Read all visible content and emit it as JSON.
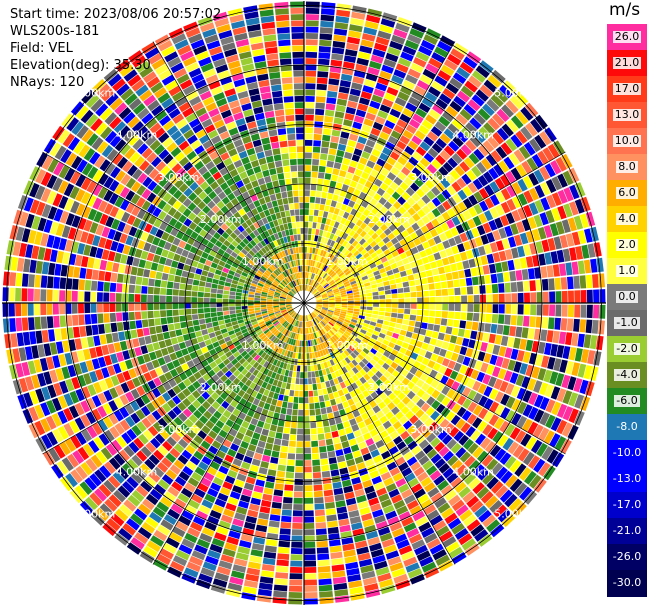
{
  "header": {
    "start_time": "Start time: 2023/08/06 20:57:02",
    "site": "WLS200s-181",
    "field": "Field: VEL",
    "elevation": "Elevation(deg): 35.30",
    "nrays": "NRays: 120"
  },
  "colorbar": {
    "unit": "m/s",
    "levels": [
      {
        "label": "26.0",
        "color": "#ff2da0"
      },
      {
        "label": "21.0",
        "color": "#ff0a0a"
      },
      {
        "label": "17.0",
        "color": "#ff3b1a"
      },
      {
        "label": "13.0",
        "color": "#ff5733"
      },
      {
        "label": "10.0",
        "color": "#ff7350"
      },
      {
        "label": "8.0",
        "color": "#ff9060"
      },
      {
        "label": "6.0",
        "color": "#ffae00"
      },
      {
        "label": "4.0",
        "color": "#ffd200"
      },
      {
        "label": "2.0",
        "color": "#ffff00"
      },
      {
        "label": "1.0",
        "color": "#ffff40"
      },
      {
        "label": "0.0",
        "color": "#7a7a7a"
      },
      {
        "label": "-1.0",
        "color": "#6b6b6b"
      },
      {
        "label": "-2.0",
        "color": "#9acd32"
      },
      {
        "label": "-4.0",
        "color": "#6b8e23"
      },
      {
        "label": "-6.0",
        "color": "#228b22"
      },
      {
        "label": "-8.0",
        "color": "#1e78b4"
      },
      {
        "label": "-10.0",
        "color": "#0000ff"
      },
      {
        "label": "-13.0",
        "color": "#0000ff"
      },
      {
        "label": "-17.0",
        "color": "#0000cd"
      },
      {
        "label": "-21.0",
        "color": "#000096"
      },
      {
        "label": "-26.0",
        "color": "#000064"
      },
      {
        "label": "-30.0",
        "color": "#000050"
      }
    ]
  },
  "range_labels": {
    "km1": "1.00km",
    "km2": "2.00km",
    "km3": "3.00km",
    "km4": "4.00km",
    "km5": "5.00km"
  },
  "icons": {
    "ppi": "radar-ppi-plot"
  }
}
